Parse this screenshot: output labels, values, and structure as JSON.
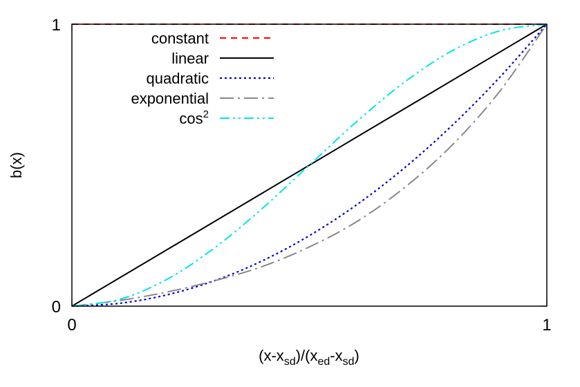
{
  "chart_data": {
    "type": "line",
    "title": "",
    "xlabel": {
      "text": "(x-x",
      "sub1": "sd",
      "mid": ")/(x",
      "sub2": "ed",
      "mid2": "-x",
      "sub3": "sd",
      "end": ")"
    },
    "ylabel": "b(x)",
    "xlim": [
      0,
      1
    ],
    "ylim": [
      0,
      1
    ],
    "xticks": [
      "0",
      "1"
    ],
    "yticks": [
      "0",
      "1"
    ],
    "grid": false,
    "legend_position": "top-left",
    "series": [
      {
        "name": "constant",
        "superscript": "",
        "color": "#ff0000",
        "dash": "9,7",
        "width": 2,
        "x": [
          0,
          1
        ],
        "y": [
          1,
          1
        ]
      },
      {
        "name": "linear",
        "superscript": "",
        "color": "#000000",
        "dash": "",
        "width": 2,
        "x": [
          0,
          1
        ],
        "y": [
          0,
          1
        ]
      },
      {
        "name": "quadratic",
        "superscript": "",
        "color": "#0000cc",
        "dash": "3,4",
        "width": 2.2,
        "x": [
          0,
          0.1,
          0.2,
          0.3,
          0.4,
          0.5,
          0.6,
          0.7,
          0.8,
          0.9,
          1.0
        ],
        "y": [
          0,
          0.01,
          0.04,
          0.09,
          0.16,
          0.25,
          0.36,
          0.49,
          0.64,
          0.81,
          1.0
        ]
      },
      {
        "name": "exponential",
        "superscript": "",
        "color": "#888888",
        "dash": "20,6,3,6",
        "width": 2,
        "x": [
          0,
          0.1,
          0.2,
          0.3,
          0.4,
          0.5,
          0.6,
          0.7,
          0.8,
          0.9,
          1.0
        ],
        "y": [
          0,
          0.02,
          0.05,
          0.09,
          0.14,
          0.21,
          0.3,
          0.42,
          0.57,
          0.76,
          1.0
        ]
      },
      {
        "name": "cos",
        "superscript": "2",
        "color": "#00e5e5",
        "dash": "14,5,3,5,3,5",
        "width": 2,
        "x": [
          0,
          0.1,
          0.2,
          0.3,
          0.4,
          0.5,
          0.6,
          0.7,
          0.8,
          0.9,
          1.0
        ],
        "y": [
          0,
          0.024,
          0.095,
          0.206,
          0.345,
          0.5,
          0.655,
          0.794,
          0.905,
          0.976,
          1.0
        ]
      }
    ]
  }
}
